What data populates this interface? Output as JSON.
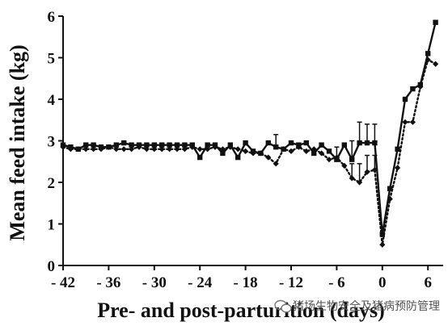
{
  "chart_data": {
    "type": "line",
    "xlabel": "Pre- and post-parturition (days)",
    "ylabel": "Mean feed intake (kg)",
    "xlim": [
      -42,
      8
    ],
    "ylim": [
      0,
      6
    ],
    "xticks": [
      -42,
      -36,
      -30,
      -24,
      -18,
      -12,
      -6,
      0,
      6
    ],
    "xtick_labels": [
      "- 42",
      "- 36",
      "- 30",
      "- 24",
      "- 18",
      "- 12",
      "- 6",
      "0",
      "6"
    ],
    "yticks": [
      0,
      1,
      2,
      3,
      4,
      5,
      6
    ],
    "ytick_labels": [
      "0",
      "1",
      "2",
      "3",
      "4",
      "5",
      "6"
    ],
    "x": [
      -42,
      -41,
      -40,
      -39,
      -38,
      -37,
      -36,
      -35,
      -34,
      -33,
      -32,
      -31,
      -30,
      -29,
      -28,
      -27,
      -26,
      -25,
      -24,
      -23,
      -22,
      -21,
      -20,
      -19,
      -18,
      -17,
      -16,
      -15,
      -14,
      -13,
      -12,
      -11,
      -10,
      -9,
      -8,
      -7,
      -6,
      -5,
      -4,
      -3,
      -2,
      -1,
      0,
      1,
      2,
      3,
      4,
      5,
      6,
      7
    ],
    "series": [
      {
        "style": "solid-square",
        "values": [
          2.9,
          2.85,
          2.8,
          2.9,
          2.9,
          2.85,
          2.85,
          2.9,
          2.95,
          2.9,
          2.9,
          2.9,
          2.9,
          2.9,
          2.9,
          2.9,
          2.9,
          2.9,
          2.6,
          2.9,
          2.9,
          2.7,
          2.9,
          2.6,
          2.95,
          2.75,
          2.7,
          2.95,
          2.85,
          2.8,
          2.95,
          2.9,
          2.95,
          2.7,
          2.9,
          2.75,
          2.55,
          2.9,
          2.55,
          2.95,
          2.95,
          2.95,
          0.75,
          1.85,
          2.8,
          4.0,
          4.25,
          4.35,
          5.1,
          5.85
        ],
        "errors": [
          0,
          0,
          0,
          0,
          0,
          0,
          0,
          0,
          0,
          0,
          0,
          0,
          0,
          0,
          0,
          0,
          0,
          0,
          0,
          0,
          0,
          0,
          0,
          0,
          0,
          0,
          0,
          0,
          0.3,
          0,
          0,
          0,
          0,
          0,
          0,
          0,
          0.3,
          0,
          0.45,
          0.5,
          0.45,
          0.45,
          0,
          0,
          0,
          0,
          0,
          0,
          0,
          0
        ]
      },
      {
        "style": "dotted-diamond",
        "values": [
          2.85,
          2.8,
          2.8,
          2.8,
          2.8,
          2.8,
          2.85,
          2.8,
          2.8,
          2.8,
          2.85,
          2.8,
          2.8,
          2.8,
          2.8,
          2.8,
          2.8,
          2.85,
          2.8,
          2.8,
          2.85,
          2.8,
          2.85,
          2.8,
          2.75,
          2.7,
          2.7,
          2.6,
          2.45,
          2.8,
          2.75,
          2.85,
          2.75,
          2.8,
          2.7,
          2.55,
          2.6,
          2.4,
          2.1,
          2.0,
          2.25,
          2.3,
          0.5,
          1.6,
          2.35,
          3.45,
          3.45,
          4.3,
          4.95,
          4.85
        ],
        "errors": [
          0,
          0,
          0,
          0,
          0,
          0,
          0,
          0,
          0,
          0,
          0,
          0,
          0,
          0,
          0,
          0,
          0,
          0,
          0,
          0,
          0,
          0,
          0,
          0,
          0,
          0,
          0,
          0,
          0,
          0,
          0,
          0,
          0,
          0,
          0,
          0,
          0,
          0,
          0.35,
          0.45,
          0.4,
          0.35,
          0,
          0,
          0,
          0,
          0,
          0,
          0,
          0
        ]
      }
    ]
  },
  "watermark": {
    "text": "猪场生物安全及猪病预防管理"
  }
}
